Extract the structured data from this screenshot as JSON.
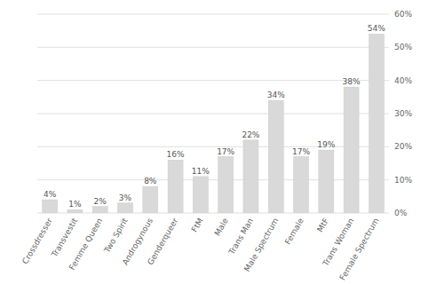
{
  "chart_data": {
    "type": "bar",
    "categories": [
      "Crossdresser",
      "Transvestit",
      "Femme Queen",
      "Two Spirit",
      "Androgynous",
      "Genderqueer",
      "FtM",
      "Male",
      "Trans Man",
      "Male Spectrum",
      "Female",
      "MtF",
      "Trans Woman",
      "Female Spectrum"
    ],
    "values": [
      4,
      1,
      2,
      3,
      8,
      16,
      11,
      17,
      22,
      34,
      17,
      19,
      38,
      54
    ],
    "value_labels": [
      "4%",
      "1%",
      "2%",
      "3%",
      "8%",
      "16%",
      "11%",
      "17%",
      "22%",
      "34%",
      "17%",
      "19%",
      "38%",
      "54%"
    ],
    "data_labels": true,
    "color": "#d9d9d9",
    "ylim": [
      0,
      60
    ],
    "yticks": [
      {
        "value": 0,
        "label": "0%"
      },
      {
        "value": 10,
        "label": "10%"
      },
      {
        "value": 20,
        "label": "20%"
      },
      {
        "value": 30,
        "label": "30%"
      },
      {
        "value": 40,
        "label": "40%"
      },
      {
        "value": 50,
        "label": "50%"
      },
      {
        "value": 60,
        "label": "60%"
      }
    ],
    "grid": true
  }
}
